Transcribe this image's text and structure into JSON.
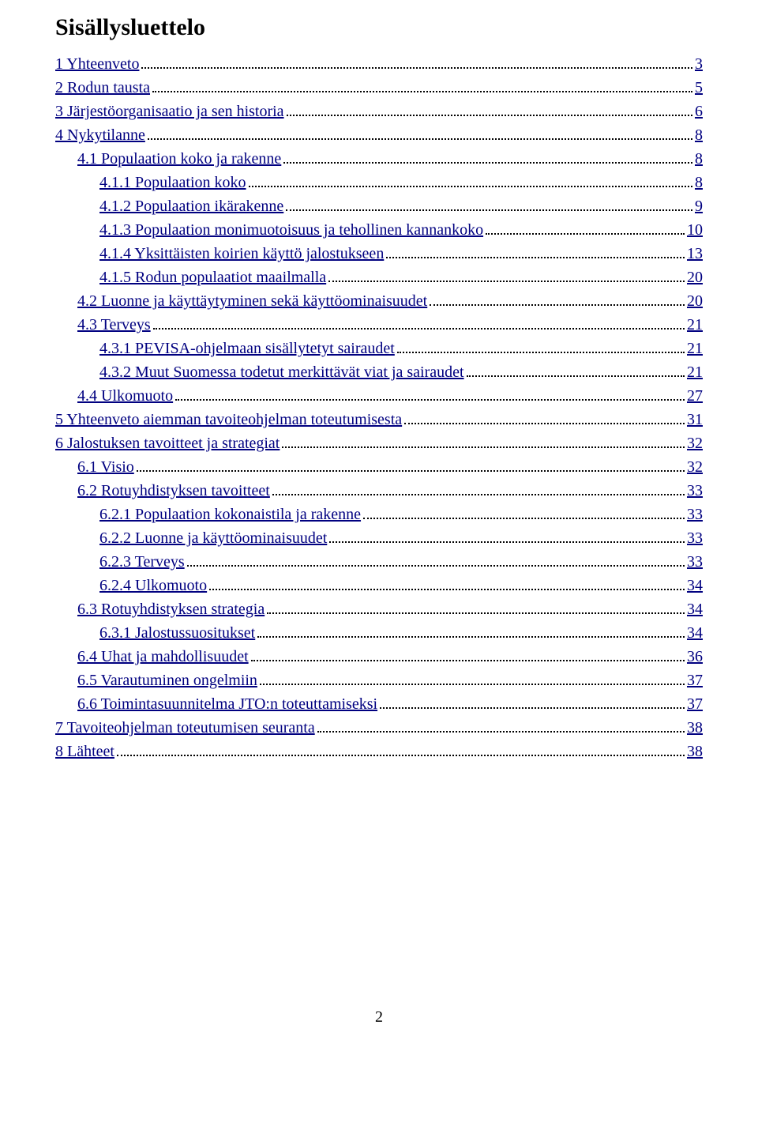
{
  "title": "Sisällysluettelo",
  "link_color": "#000080",
  "page_number": "2",
  "entries": [
    {
      "indent": 0,
      "label": " 1 Yhteenveto",
      "page": "3"
    },
    {
      "indent": 0,
      "label": " 2 Rodun tausta",
      "page": "5"
    },
    {
      "indent": 0,
      "label": " 3 Järjestöorganisaatio ja sen historia",
      "page": "6"
    },
    {
      "indent": 0,
      "label": " 4 Nykytilanne",
      "page": "8"
    },
    {
      "indent": 1,
      "label": " 4.1 Populaation koko ja rakenne",
      "page": "8"
    },
    {
      "indent": 2,
      "label": " 4.1.1 Populaation koko",
      "page": "8"
    },
    {
      "indent": 2,
      "label": " 4.1.2 Populaation ikärakenne",
      "page": "9"
    },
    {
      "indent": 2,
      "label": " 4.1.3 Populaation monimuotoisuus ja tehollinen kannankoko",
      "page": "10"
    },
    {
      "indent": 2,
      "label": " 4.1.4  Yksittäisten koirien käyttö jalostukseen",
      "page": "13"
    },
    {
      "indent": 2,
      "label": " 4.1.5 Rodun populaatiot maailmalla",
      "page": "20"
    },
    {
      "indent": 1,
      "label": " 4.2 Luonne ja käyttäytyminen sekä käyttöominaisuudet",
      "page": "20"
    },
    {
      "indent": 1,
      "label": " 4.3 Terveys",
      "page": "21"
    },
    {
      "indent": 2,
      "label": " 4.3.1 PEVISA-ohjelmaan sisällytetyt sairaudet",
      "page": "21"
    },
    {
      "indent": 2,
      "label": " 4.3.2 Muut Suomessa todetut merkittävät viat ja sairaudet",
      "page": "21"
    },
    {
      "indent": 1,
      "label": " 4.4 Ulkomuoto",
      "page": "27"
    },
    {
      "indent": 0,
      "label": " 5 Yhteenveto aiemman tavoiteohjelman toteutumisesta",
      "page": "31"
    },
    {
      "indent": 0,
      "label": " 6 Jalostuksen tavoitteet ja strategiat",
      "page": "32"
    },
    {
      "indent": 1,
      "label": " 6.1 Visio",
      "page": "32"
    },
    {
      "indent": 1,
      "label": " 6.2 Rotuyhdistyksen tavoitteet",
      "page": "33"
    },
    {
      "indent": 2,
      "label": " 6.2.1 Populaation kokonaistila ja rakenne",
      "page": "33"
    },
    {
      "indent": 2,
      "label": " 6.2.2 Luonne ja käyttöominaisuudet",
      "page": "33"
    },
    {
      "indent": 2,
      "label": " 6.2.3 Terveys",
      "page": "33"
    },
    {
      "indent": 2,
      "label": " 6.2.4 Ulkomuoto",
      "page": "34"
    },
    {
      "indent": 1,
      "label": " 6.3 Rotuyhdistyksen strategia ",
      "page": "34"
    },
    {
      "indent": 2,
      "label": " 6.3.1 Jalostussuositukset",
      "page": "34"
    },
    {
      "indent": 1,
      "label": " 6.4 Uhat ja mahdollisuudet",
      "page": "36"
    },
    {
      "indent": 1,
      "label": " 6.5 Varautuminen ongelmiin",
      "page": "37"
    },
    {
      "indent": 1,
      "label": " 6.6 Toimintasuunnitelma JTO:n toteuttamiseksi",
      "page": "37"
    },
    {
      "indent": 0,
      "label": " 7 Tavoiteohjelman toteutumisen seuranta",
      "page": "38"
    },
    {
      "indent": 0,
      "label": " 8 Lähteet",
      "page": "38"
    }
  ]
}
